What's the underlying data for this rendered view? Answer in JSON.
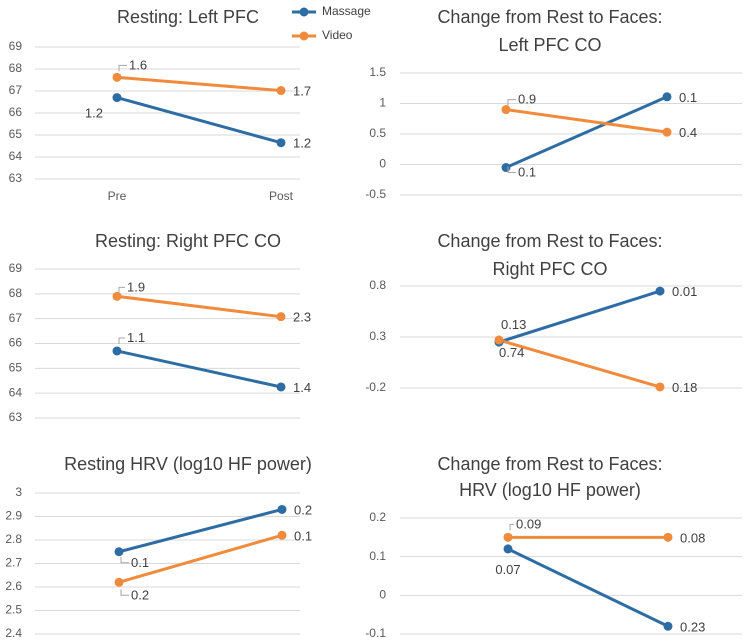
{
  "colors": {
    "massage": "#2E6DA4",
    "video": "#F08A3C",
    "grid": "#D9D9D9",
    "text": "#404040",
    "tick": "#595959"
  },
  "legend": {
    "items": [
      {
        "name": "Massage",
        "color": "#2E6DA4"
      },
      {
        "name": "Video",
        "color": "#F08A3C"
      }
    ]
  },
  "chart_data": [
    {
      "id": "resting-left-pfc",
      "type": "line",
      "title_lines": [
        "Resting: Left PFC"
      ],
      "categories": [
        "Pre",
        "Post"
      ],
      "show_category_labels": true,
      "y_ticks": [
        "69",
        "68",
        "67",
        "66",
        "65",
        "64",
        "63"
      ],
      "ylim": [
        63,
        69
      ],
      "series": [
        {
          "name": "Massage",
          "values": [
            66.7,
            64.65
          ],
          "labels": [
            "1.2",
            "1.2"
          ]
        },
        {
          "name": "Video",
          "values": [
            67.62,
            67.02
          ],
          "labels": [
            "1.6",
            "1.7"
          ]
        }
      ]
    },
    {
      "id": "change-left-pfc-co",
      "type": "line",
      "title_lines": [
        "Change from Rest to Faces:",
        "Left PFC CO"
      ],
      "categories": [
        "Pre",
        "Post"
      ],
      "show_category_labels": false,
      "y_ticks": [
        "1.5",
        "1",
        "0.5",
        "0",
        "-0.5"
      ],
      "ylim": [
        -0.5,
        1.5
      ],
      "series": [
        {
          "name": "Massage",
          "values": [
            -0.05,
            1.11
          ],
          "labels": [
            "0.1",
            "0.1"
          ]
        },
        {
          "name": "Video",
          "values": [
            0.9,
            0.53
          ],
          "labels": [
            "0.9",
            "0.4"
          ]
        }
      ]
    },
    {
      "id": "resting-right-pfc-co",
      "type": "line",
      "title_lines": [
        "Resting: Right PFC CO"
      ],
      "categories": [
        "Pre",
        "Post"
      ],
      "show_category_labels": false,
      "y_ticks": [
        "69",
        "68",
        "67",
        "66",
        "65",
        "64",
        "63"
      ],
      "ylim": [
        63,
        69
      ],
      "series": [
        {
          "name": "Massage",
          "values": [
            65.7,
            64.25
          ],
          "labels": [
            "1.1",
            "1.4"
          ]
        },
        {
          "name": "Video",
          "values": [
            67.9,
            67.08
          ],
          "labels": [
            "1.9",
            "2.3"
          ]
        }
      ]
    },
    {
      "id": "change-right-pfc-co",
      "type": "line",
      "title_lines": [
        "Change from Rest to Faces:",
        "Right PFC CO"
      ],
      "categories": [
        "Pre",
        "Post"
      ],
      "show_category_labels": false,
      "y_ticks": [
        "0.8",
        "0.3",
        "-0.2"
      ],
      "ylim": [
        -0.2,
        0.8
      ],
      "series": [
        {
          "name": "Massage",
          "values": [
            0.25,
            0.75
          ],
          "labels": [
            "0.13",
            "0.01"
          ]
        },
        {
          "name": "Video",
          "values": [
            0.27,
            -0.19
          ],
          "labels": [
            "0.74",
            "0.18"
          ]
        }
      ]
    },
    {
      "id": "resting-hrv",
      "type": "line",
      "title_lines": [
        "Resting HRV (log10 HF power)"
      ],
      "categories": [
        "Pre",
        "Post"
      ],
      "show_category_labels": false,
      "y_ticks": [
        "3",
        "2.9",
        "2.8",
        "2.7",
        "2.6",
        "2.5",
        "2.4"
      ],
      "ylim": [
        2.4,
        3.0
      ],
      "series": [
        {
          "name": "Massage",
          "values": [
            2.75,
            2.93
          ],
          "labels": [
            "0.1",
            "0.2"
          ]
        },
        {
          "name": "Video",
          "values": [
            2.62,
            2.82
          ],
          "labels": [
            "0.2",
            "0.1"
          ]
        }
      ]
    },
    {
      "id": "change-hrv",
      "type": "line",
      "title_lines": [
        "Change from Rest to Faces:",
        "HRV (log10 HF power)"
      ],
      "categories": [
        "Pre",
        "Post"
      ],
      "show_category_labels": false,
      "y_ticks": [
        "0.2",
        "0.1",
        "0",
        "-0.1"
      ],
      "ylim": [
        -0.1,
        0.2
      ],
      "series": [
        {
          "name": "Massage",
          "values": [
            0.12,
            -0.08
          ],
          "labels": [
            "0.07",
            "0.23"
          ]
        },
        {
          "name": "Video",
          "values": [
            0.15,
            0.15
          ],
          "labels": [
            "0.09",
            "0.08"
          ]
        }
      ]
    }
  ]
}
